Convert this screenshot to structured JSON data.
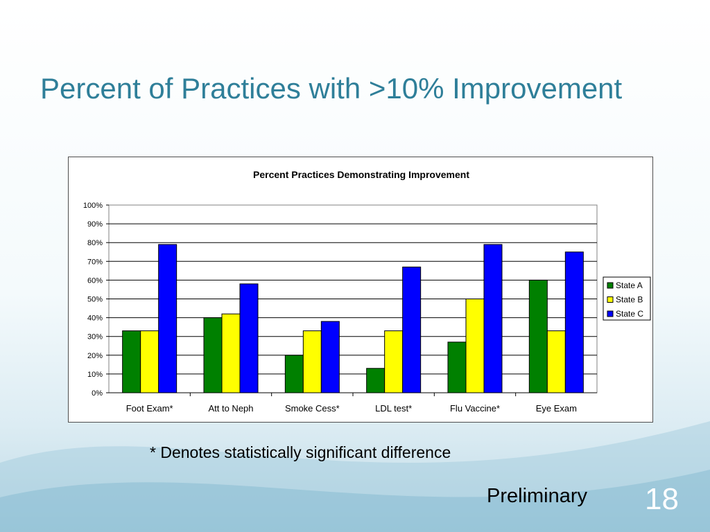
{
  "slide": {
    "title": "Percent of Practices with >10% Improvement",
    "footnote": "* Denotes statistically significant difference",
    "label": "Preliminary",
    "page_number": "18"
  },
  "colors": {
    "title": "#2f7f99",
    "background_wave": "#7fb8cf"
  },
  "chart_data": {
    "type": "bar",
    "title": "Percent Practices Demonstrating Improvement",
    "xlabel": "",
    "ylabel": "",
    "categories": [
      "Foot Exam*",
      "Att to Neph",
      "Smoke Cess*",
      "LDL test*",
      "Flu Vaccine*",
      "Eye Exam"
    ],
    "series": [
      {
        "name": "State A",
        "color": "#008000",
        "values": [
          33,
          40,
          20,
          13,
          27,
          60
        ]
      },
      {
        "name": "State B",
        "color": "#ffff00",
        "values": [
          33,
          42,
          33,
          33,
          50,
          33
        ]
      },
      {
        "name": "State C",
        "color": "#0000ff",
        "values": [
          79,
          58,
          38,
          67,
          79,
          75
        ]
      }
    ],
    "ylim": [
      0,
      100
    ],
    "yticks": [
      "0%",
      "10%",
      "20%",
      "30%",
      "40%",
      "50%",
      "60%",
      "70%",
      "80%",
      "90%",
      "100%"
    ],
    "grid": true,
    "legend": "right"
  }
}
